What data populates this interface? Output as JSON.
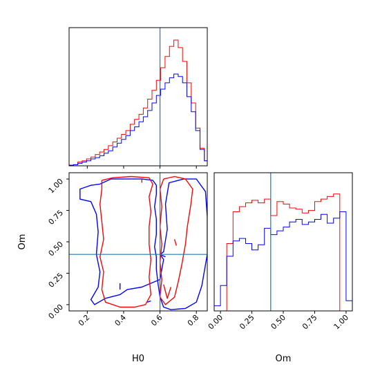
{
  "chart_data": [
    {
      "panel": "hist-H0",
      "type": "histogram",
      "xlim": [
        0.1,
        0.86
      ],
      "ylim": [
        0,
        1.0
      ],
      "truth_x": 0.6,
      "bins": [
        0.1,
        0.124,
        0.148,
        0.172,
        0.196,
        0.22,
        0.244,
        0.268,
        0.292,
        0.316,
        0.34,
        0.364,
        0.388,
        0.412,
        0.436,
        0.46,
        0.484,
        0.508,
        0.532,
        0.556,
        0.58,
        0.604,
        0.628,
        0.652,
        0.676,
        0.7,
        0.724,
        0.748,
        0.772,
        0.796,
        0.82,
        0.844,
        0.868
      ],
      "series": [
        {
          "color": "#ff0000",
          "values": [
            0.005,
            0.01,
            0.03,
            0.04,
            0.055,
            0.07,
            0.09,
            0.11,
            0.13,
            0.16,
            0.19,
            0.22,
            0.25,
            0.28,
            0.33,
            0.37,
            0.41,
            0.46,
            0.53,
            0.6,
            0.68,
            0.78,
            0.87,
            0.95,
            1.0,
            0.94,
            0.83,
            0.66,
            0.5,
            0.3,
            0.14,
            0.04,
            0.01
          ]
        },
        {
          "color": "#0000ff",
          "values": [
            0.005,
            0.008,
            0.02,
            0.03,
            0.04,
            0.055,
            0.065,
            0.08,
            0.1,
            0.12,
            0.15,
            0.18,
            0.21,
            0.24,
            0.28,
            0.31,
            0.35,
            0.39,
            0.44,
            0.5,
            0.56,
            0.61,
            0.66,
            0.7,
            0.73,
            0.71,
            0.66,
            0.55,
            0.43,
            0.28,
            0.13,
            0.04,
            0.01
          ]
        }
      ]
    },
    {
      "panel": "hist-Om",
      "type": "histogram",
      "xlim": [
        -0.05,
        1.05
      ],
      "ylim": [
        0,
        1.0
      ],
      "truth_x": 0.4,
      "bins": [
        -0.05,
        0.0,
        0.05,
        0.1,
        0.15,
        0.2,
        0.25,
        0.3,
        0.35,
        0.4,
        0.45,
        0.5,
        0.55,
        0.6,
        0.65,
        0.7,
        0.75,
        0.8,
        0.85,
        0.9,
        0.95,
        1.0,
        1.05
      ],
      "series": [
        {
          "color": "#ff0000",
          "values": [
            0.0,
            0.0,
            0.53,
            0.78,
            0.82,
            0.85,
            0.87,
            0.85,
            0.88,
            0.75,
            0.86,
            0.84,
            0.81,
            0.8,
            0.77,
            0.79,
            0.86,
            0.88,
            0.9,
            0.92,
            0.0,
            0.0
          ]
        },
        {
          "color": "#0000ff",
          "values": [
            0.04,
            0.2,
            0.43,
            0.55,
            0.57,
            0.53,
            0.48,
            0.52,
            0.65,
            0.6,
            0.63,
            0.66,
            0.7,
            0.72,
            0.68,
            0.7,
            0.72,
            0.76,
            0.69,
            0.73,
            0.78,
            0.08
          ]
        }
      ]
    },
    {
      "panel": "contour-H0-Om",
      "type": "contour",
      "xlabel": "H0",
      "ylabel": "Om",
      "xlim": [
        0.1,
        0.86
      ],
      "ylim": [
        -0.05,
        1.05
      ],
      "truth": {
        "x": 0.6,
        "y": 0.4
      },
      "xticks": [
        "0.2",
        "0.4",
        "0.6",
        "0.8"
      ],
      "yticks": [
        "0.00",
        "0.25",
        "0.50",
        "0.75",
        "1.00"
      ],
      "contours": [
        {
          "color": "#0000ff",
          "points": [
            [
              0.27,
              0.96
            ],
            [
              0.33,
              1.0
            ],
            [
              0.4,
              1.0
            ],
            [
              0.5,
              1.0
            ],
            [
              0.56,
              0.99
            ],
            [
              0.58,
              0.95
            ],
            [
              0.58,
              0.88
            ],
            [
              0.57,
              0.78
            ],
            [
              0.58,
              0.68
            ],
            [
              0.58,
              0.56
            ],
            [
              0.57,
              0.46
            ],
            [
              0.58,
              0.38
            ],
            [
              0.58,
              0.28
            ],
            [
              0.59,
              0.16
            ],
            [
              0.6,
              0.06
            ],
            [
              0.62,
              -0.02
            ],
            [
              0.66,
              -0.04
            ],
            [
              0.74,
              -0.03
            ],
            [
              0.8,
              0.02
            ],
            [
              0.83,
              0.15
            ],
            [
              0.86,
              0.4
            ],
            [
              0.86,
              0.7
            ],
            [
              0.85,
              0.9
            ],
            [
              0.8,
              1.0
            ],
            [
              0.73,
              1.0
            ],
            [
              0.65,
              0.97
            ],
            [
              0.63,
              0.8
            ],
            [
              0.64,
              0.6
            ],
            [
              0.62,
              0.42
            ],
            [
              0.6,
              0.4
            ],
            [
              0.62,
              0.36
            ],
            [
              0.6,
              0.2
            ],
            [
              0.5,
              0.14
            ],
            [
              0.42,
              0.12
            ],
            [
              0.38,
              0.08
            ],
            [
              0.3,
              0.05
            ],
            [
              0.24,
              0.0
            ],
            [
              0.22,
              0.04
            ],
            [
              0.26,
              0.14
            ],
            [
              0.27,
              0.26
            ],
            [
              0.25,
              0.4
            ],
            [
              0.26,
              0.58
            ],
            [
              0.25,
              0.72
            ],
            [
              0.22,
              0.82
            ],
            [
              0.16,
              0.84
            ],
            [
              0.16,
              0.92
            ],
            [
              0.22,
              0.95
            ],
            [
              0.27,
              0.96
            ]
          ]
        },
        {
          "color": "#0000ff",
          "points": [
            [
              0.38,
              0.17
            ],
            [
              0.38,
              0.12
            ]
          ]
        },
        {
          "color": "#0000ff",
          "points": [
            [
              0.53,
              0.02
            ],
            [
              0.55,
              0.03
            ]
          ]
        },
        {
          "color": "#0000ff",
          "points": [
            [
              0.6,
              0.4
            ],
            [
              0.63,
              0.38
            ]
          ]
        },
        {
          "color": "#ff0000",
          "points": [
            [
              0.28,
              0.99
            ],
            [
              0.34,
              1.01
            ],
            [
              0.44,
              1.02
            ],
            [
              0.54,
              1.01
            ],
            [
              0.56,
              0.96
            ],
            [
              0.54,
              0.86
            ],
            [
              0.55,
              0.74
            ],
            [
              0.54,
              0.62
            ],
            [
              0.54,
              0.48
            ],
            [
              0.55,
              0.36
            ],
            [
              0.54,
              0.22
            ],
            [
              0.55,
              0.08
            ],
            [
              0.52,
              0.0
            ],
            [
              0.46,
              -0.02
            ],
            [
              0.38,
              -0.02
            ],
            [
              0.3,
              0.02
            ],
            [
              0.28,
              0.12
            ],
            [
              0.29,
              0.26
            ],
            [
              0.27,
              0.38
            ],
            [
              0.29,
              0.52
            ],
            [
              0.28,
              0.66
            ],
            [
              0.27,
              0.8
            ],
            [
              0.28,
              0.92
            ],
            [
              0.28,
              0.99
            ]
          ]
        },
        {
          "color": "#ff0000",
          "points": [
            [
              0.62,
              1.0
            ],
            [
              0.68,
              1.02
            ],
            [
              0.74,
              1.0
            ],
            [
              0.78,
              0.92
            ],
            [
              0.77,
              0.8
            ],
            [
              0.75,
              0.62
            ],
            [
              0.74,
              0.48
            ],
            [
              0.72,
              0.32
            ],
            [
              0.7,
              0.18
            ],
            [
              0.68,
              0.06
            ],
            [
              0.63,
              0.0
            ],
            [
              0.6,
              0.06
            ],
            [
              0.61,
              0.2
            ],
            [
              0.6,
              0.34
            ],
            [
              0.61,
              0.48
            ],
            [
              0.6,
              0.62
            ],
            [
              0.61,
              0.78
            ],
            [
              0.6,
              0.92
            ],
            [
              0.62,
              1.0
            ]
          ]
        },
        {
          "color": "#ff0000",
          "points": [
            [
              0.62,
              0.16
            ],
            [
              0.64,
              0.05
            ],
            [
              0.66,
              0.14
            ]
          ]
        },
        {
          "color": "#ff0000",
          "points": [
            [
              0.68,
              0.52
            ],
            [
              0.69,
              0.47
            ]
          ]
        },
        {
          "color": "#ff0000",
          "points": [
            [
              0.5,
              1.0
            ],
            [
              0.5,
              0.97
            ]
          ]
        }
      ]
    }
  ]
}
